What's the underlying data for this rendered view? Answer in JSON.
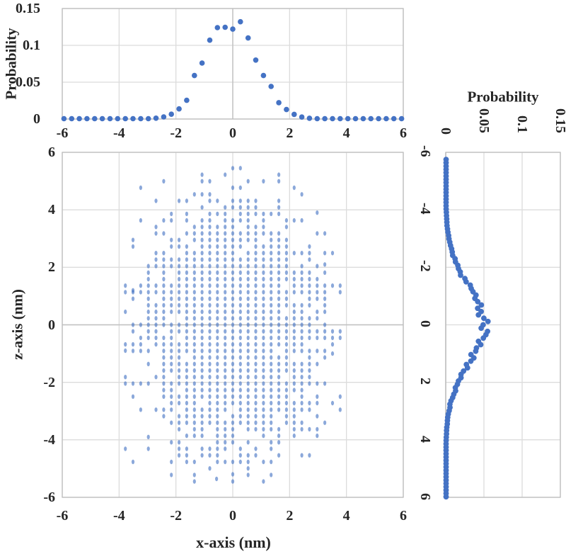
{
  "figure_type": "scatter matrix: central x-z scatter with marginal probability distributions",
  "colors": {
    "marker_blue": "#4472C4",
    "scatter_fill": "#4472C4",
    "scatter_opacity": 0.62,
    "gridline": "#DCDCDC",
    "zero_axis_line": "#C0C0C0",
    "plot_border": "#BDBDBD",
    "text": "#262626"
  },
  "chart_data": [
    {
      "id": "top_histogram",
      "type": "scatter",
      "ylabel": "Probability",
      "xlabel": "",
      "x_range": [
        -6,
        6
      ],
      "y_range": [
        0,
        0.15
      ],
      "x_ticks": [
        "-6",
        "-4",
        "-2",
        "0",
        "2",
        "4",
        "6"
      ],
      "x_tick_values": [
        -6,
        -4,
        -2,
        0,
        2,
        4,
        6
      ],
      "y_ticks": [
        "0",
        "0.05",
        "0.1",
        "0.15"
      ],
      "y_tick_values": [
        0,
        0.05,
        0.1,
        0.15
      ],
      "grid": true,
      "legend": "none",
      "generator": {
        "x_min": -5.94,
        "x_max": 5.94,
        "x_step": 0.27,
        "peak": 0.131,
        "sigma": 0.88,
        "noise": 0.1,
        "floor": 0.0005,
        "seed": 7
      },
      "sample_points": [
        [
          -1.35,
          0.059
        ],
        [
          -1.0,
          0.076
        ],
        [
          -0.75,
          0.107
        ],
        [
          -0.45,
          0.124
        ],
        [
          -0.125,
          0.122
        ],
        [
          0.3,
          0.132
        ],
        [
          0.55,
          0.11
        ],
        [
          0.9,
          0.08
        ],
        [
          1.2,
          0.059
        ]
      ]
    },
    {
      "id": "main_scatter",
      "type": "scatter",
      "xlabel": "x-axis (nm)",
      "ylabel": "z-axis (nm)",
      "x_range": [
        -6,
        6
      ],
      "y_range": [
        -6,
        6
      ],
      "x_ticks": [
        "-6",
        "-4",
        "-2",
        "0",
        "2",
        "4",
        "6"
      ],
      "x_tick_values": [
        -6,
        -4,
        -2,
        0,
        2,
        4,
        6
      ],
      "y_ticks": [
        "6",
        "4",
        "2",
        "0",
        "-2",
        "-4",
        "-6"
      ],
      "y_tick_values": [
        6,
        4,
        2,
        0,
        -2,
        -4,
        -6
      ],
      "grid": true,
      "legend": "none",
      "description": "dense grid-sampled 2D Gaussian point cloud, columns spaced ~0.27 nm, rows ~0.227 nm",
      "generator": {
        "x_step": 0.27,
        "z_step": 0.227,
        "x_max": 3.78,
        "z_max": 5.45,
        "sigma_x": 1.45,
        "sigma_z": 2.0,
        "density": 9,
        "seed": 42
      },
      "outliers": [
        [
          0.27,
          5.45
        ],
        [
          -0.57,
          -5.36
        ],
        [
          0.0,
          -5.2
        ],
        [
          -3.78,
          -0.9
        ],
        [
          3.78,
          -0.45
        ],
        [
          3.51,
          -1.0
        ],
        [
          2.97,
          3.9
        ],
        [
          -2.97,
          -3.9
        ],
        [
          3.24,
          2.1
        ],
        [
          -3.51,
          1.2
        ]
      ]
    },
    {
      "id": "right_histogram",
      "type": "scatter",
      "title": "Probability",
      "orientation": "probability on horizontal axis, z on vertical axis (z increases downward)",
      "p_range": [
        0,
        0.15
      ],
      "z_range": [
        -6,
        6
      ],
      "p_ticks": [
        "0",
        "0.05",
        "0.1",
        "0.15"
      ],
      "p_tick_values": [
        0,
        0.05,
        0.1,
        0.15
      ],
      "z_ticks": [
        "-6",
        "-4",
        "-2",
        "0",
        "2",
        "4",
        "6"
      ],
      "z_tick_values": [
        -6,
        -4,
        -2,
        0,
        2,
        4,
        6
      ],
      "grid": true,
      "legend": "none",
      "generator": {
        "z_min": -5.75,
        "z_max": 5.98,
        "z_step": 0.115,
        "peak": 0.05,
        "sigma": 1.35,
        "noise": 0.12,
        "floor": 0.0005,
        "seed": 21
      },
      "sample_points": [
        [
          -2.0,
          0.0167
        ],
        [
          0.0,
          0.049
        ],
        [
          2.0,
          0.0167
        ]
      ]
    }
  ]
}
